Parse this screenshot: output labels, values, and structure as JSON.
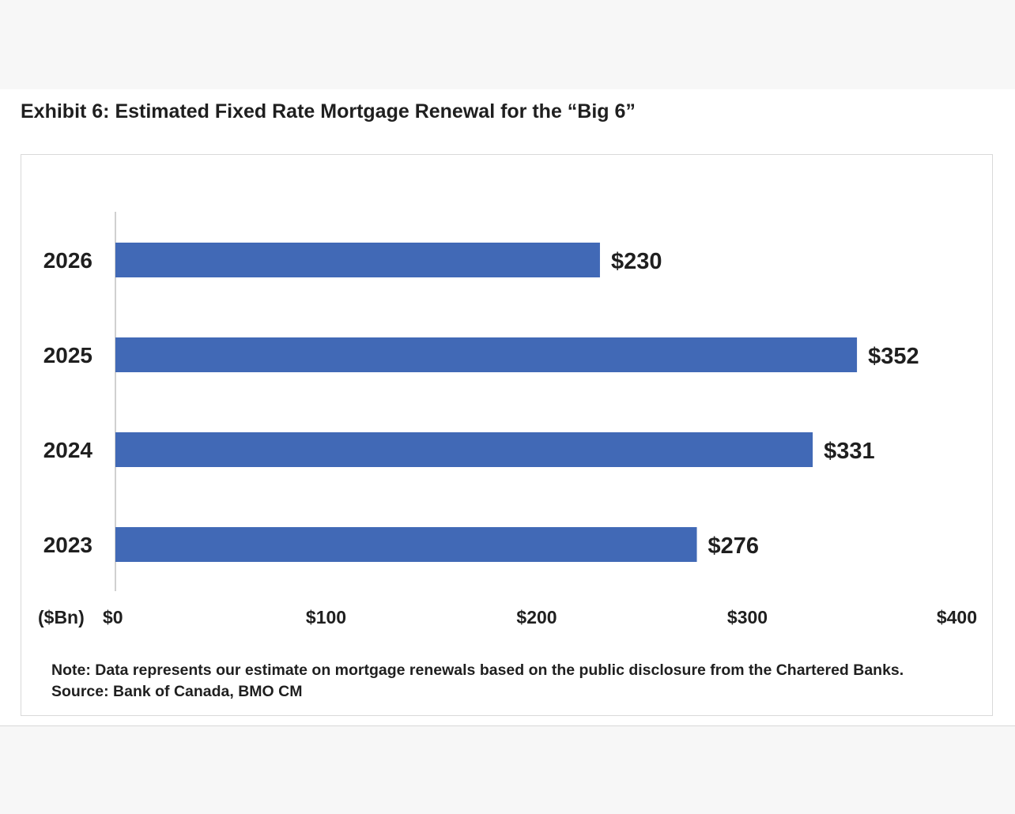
{
  "chart_data": {
    "type": "bar",
    "orientation": "horizontal",
    "title": "Exhibit 6:  Estimated Fixed Rate Mortgage Renewal for the “Big 6”",
    "categories": [
      "2026",
      "2025",
      "2024",
      "2023"
    ],
    "values": [
      230,
      352,
      331,
      276
    ],
    "data_labels": [
      "$230",
      "$352",
      "$331",
      "$276"
    ],
    "xlim": [
      0,
      400
    ],
    "xticks": [
      0,
      100,
      200,
      300,
      400
    ],
    "xtick_labels": [
      "$0",
      "$100",
      "$200",
      "$300",
      "$400"
    ],
    "xlabel": "($Bn)",
    "ylabel": "",
    "grid": false,
    "bar_color": "#4169b6"
  },
  "note": {
    "note_text": "Note: Data represents our estimate on mortgage renewals based on the public disclosure from the Chartered Banks.",
    "source_text": "Source: Bank of Canada, BMO CM"
  }
}
